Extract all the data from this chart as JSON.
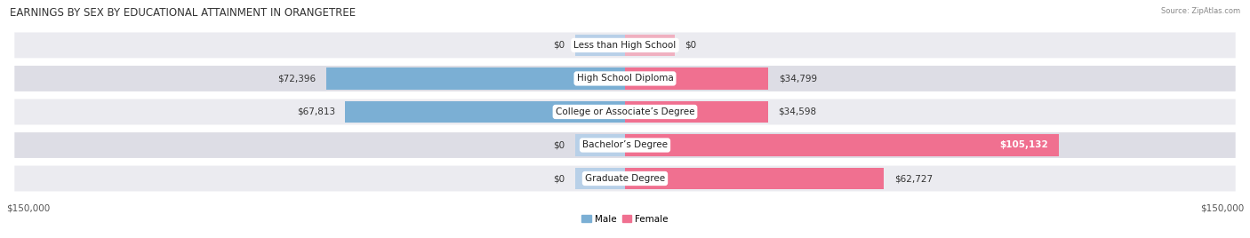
{
  "title": "EARNINGS BY SEX BY EDUCATIONAL ATTAINMENT IN ORANGETREE",
  "source": "Source: ZipAtlas.com",
  "categories": [
    "Less than High School",
    "High School Diploma",
    "College or Associate’s Degree",
    "Bachelor’s Degree",
    "Graduate Degree"
  ],
  "male_values": [
    0,
    72396,
    67813,
    0,
    0
  ],
  "female_values": [
    0,
    34799,
    34598,
    105132,
    62727
  ],
  "male_labels": [
    "$0",
    "$72,396",
    "$67,813",
    "$0",
    "$0"
  ],
  "female_labels": [
    "$0",
    "$34,799",
    "$34,598",
    "$105,132",
    "$62,727"
  ],
  "male_color": "#7bafd4",
  "female_color": "#f07090",
  "male_color_light": "#b8d0e8",
  "female_color_light": "#f0b0c0",
  "row_bg_colors": [
    "#ebebf0",
    "#dddde5",
    "#ebebf0",
    "#dddde5",
    "#ebebf0"
  ],
  "max_value": 150000,
  "stub_value": 12000,
  "x_labels_left": "$150,000",
  "x_labels_right": "$150,000",
  "title_fontsize": 8.5,
  "label_fontsize": 7.5,
  "cat_fontsize": 7.5,
  "background_color": "#ffffff"
}
